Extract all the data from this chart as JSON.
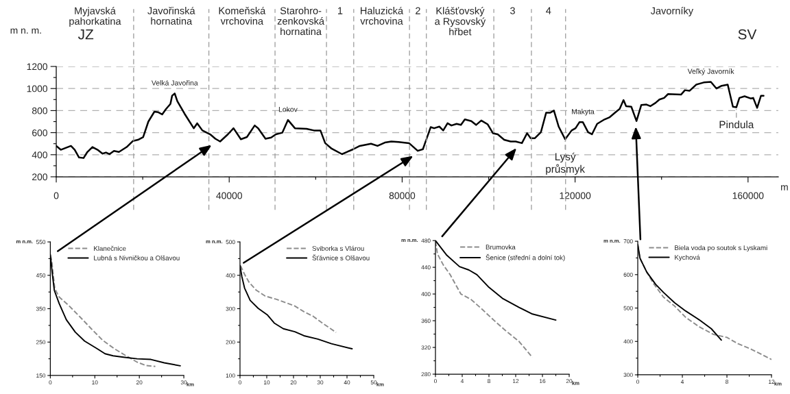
{
  "chart_data": [
    {
      "type": "line",
      "ylabel": "m n. m.",
      "xlabel": "m",
      "xlim": [
        0,
        167000
      ],
      "ylim": [
        200,
        1200
      ],
      "xticks": [
        0,
        {
          "value": 20000,
          "label": null
        },
        40000,
        {
          "value": 60000,
          "label": null
        },
        80000,
        {
          "value": 100000,
          "label": null
        },
        120000,
        {
          "value": 140000,
          "label": null
        },
        160000
      ],
      "yticks": [
        200,
        {
          "value": 300,
          "label": null
        },
        400,
        {
          "value": 500,
          "label": null
        },
        600,
        {
          "value": 700,
          "label": null
        },
        800,
        {
          "value": 900,
          "label": null
        },
        1000,
        {
          "value": 1100,
          "label": null
        },
        1200
      ],
      "grid": "y",
      "tick_labels": true,
      "series": [
        {
          "color": "#000000",
          "line_style": "solid",
          "x": [
            0,
            1050,
            3400,
            4270,
            5270,
            6320,
            7200,
            8370,
            9550,
            10700,
            11500,
            12300,
            13350,
            14500,
            16300,
            17750,
            18900,
            20100,
            21300,
            22700,
            23600,
            24500,
            25400,
            26400,
            26800,
            27400,
            28000,
            29700,
            31800,
            32600,
            33800,
            35600,
            36800,
            37900,
            39700,
            41000,
            42700,
            44100,
            45900,
            46700,
            48400,
            49700,
            50800,
            52300,
            53600,
            55200,
            57900,
            59600,
            61100,
            62200,
            63700,
            66100,
            67200,
            68700,
            70200,
            72800,
            74300,
            76000,
            77500,
            79200,
            81600,
            83600,
            84800,
            85700,
            86600,
            87400,
            88600,
            89500,
            90500,
            91400,
            92600,
            93600,
            94500,
            96000,
            97100,
            98300,
            99800,
            101000,
            102100,
            103600,
            105100,
            106250,
            107700,
            108900,
            109700,
            110700,
            112100,
            113300,
            114200,
            115100,
            116200,
            117700,
            119200,
            120100,
            121000,
            121800,
            123000,
            123900,
            125100,
            126800,
            128000,
            129500,
            130300,
            131200,
            131800,
            133000,
            134200,
            135300,
            136500,
            137400,
            138600,
            139500,
            140600,
            141500,
            144500,
            145400,
            146500,
            148000,
            149750,
            151400,
            152700,
            153900,
            155300,
            156500,
            157300,
            158000,
            159200,
            160600,
            161200,
            162100,
            163000,
            163600
          ],
          "values": [
            480,
            445,
            480,
            445,
            375,
            370,
            425,
            470,
            445,
            410,
            420,
            405,
            435,
            425,
            470,
            525,
            535,
            560,
            700,
            790,
            785,
            765,
            815,
            860,
            935,
            955,
            885,
            770,
            640,
            685,
            620,
            585,
            545,
            520,
            585,
            640,
            540,
            560,
            665,
            640,
            545,
            555,
            585,
            600,
            715,
            640,
            635,
            620,
            620,
            505,
            455,
            405,
            425,
            450,
            480,
            500,
            480,
            510,
            520,
            515,
            505,
            435,
            450,
            550,
            650,
            640,
            655,
            620,
            685,
            665,
            680,
            670,
            720,
            705,
            670,
            710,
            675,
            595,
            585,
            535,
            520,
            520,
            505,
            595,
            550,
            550,
            605,
            780,
            780,
            800,
            655,
            540,
            620,
            640,
            695,
            695,
            605,
            585,
            680,
            720,
            740,
            790,
            815,
            895,
            840,
            835,
            705,
            850,
            855,
            840,
            870,
            900,
            915,
            950,
            945,
            985,
            980,
            1035,
            1055,
            1060,
            1000,
            1025,
            1035,
            835,
            830,
            915,
            930,
            910,
            915,
            825,
            935,
            935
          ]
        }
      ],
      "ref_lines": [
        {
          "axis": "x",
          "value": 17900,
          "color": "#999999",
          "line_style": "dashed"
        },
        {
          "axis": "x",
          "value": 35300,
          "color": "#999999",
          "line_style": "dashed"
        },
        {
          "axis": "x",
          "value": 50600,
          "color": "#999999",
          "line_style": "dashed"
        },
        {
          "axis": "x",
          "value": 62500,
          "color": "#999999",
          "line_style": "dashed"
        },
        {
          "axis": "x",
          "value": 68800,
          "color": "#999999",
          "line_style": "dashed"
        },
        {
          "axis": "x",
          "value": 81700,
          "color": "#999999",
          "line_style": "dashed"
        },
        {
          "axis": "x",
          "value": 85600,
          "color": "#999999",
          "line_style": "dashed"
        },
        {
          "axis": "x",
          "value": 101200,
          "color": "#999999",
          "line_style": "dashed"
        },
        {
          "axis": "x",
          "value": 109900,
          "color": "#999999",
          "line_style": "dashed"
        },
        {
          "axis": "x",
          "value": 117800,
          "color": "#999999",
          "line_style": "dashed"
        }
      ],
      "annotations": [
        "Myjavská\npahorkatina",
        "Javořinská\nhornatina",
        "Komeňská\nvrchovina",
        "Starohro-\nzenkovská\nhornatina",
        "1",
        "Haluzická\nvrchovina",
        "2",
        "Klášťovský\na Rysovský\nhřbet",
        "3",
        "4",
        "Javorníky",
        "JZ",
        "SV",
        {
          "text": "Velká Javořina",
          "x": 27400,
          "y": 955
        },
        {
          "text": "Lokov",
          "x": 53600,
          "y": 715
        },
        {
          "text": "Makyta",
          "x": 121800,
          "y": 695
        },
        {
          "text": "Veľký Javorník",
          "x": 151400,
          "y": 1060
        },
        {
          "text": "Pindula",
          "x": 157300,
          "y": 830
        },
        {
          "text": "Lysý\nprůsmyk",
          "x": 117700,
          "y": 540
        }
      ]
    },
    {
      "type": "line",
      "ylabel": "m n.m.",
      "xlabel": "km",
      "xlim": [
        0,
        30
      ],
      "ylim": [
        150,
        550
      ],
      "legend": "top right",
      "xticks": [
        0,
        {
          "value": 5,
          "label": null
        },
        10,
        {
          "value": 15,
          "label": null
        },
        20,
        {
          "value": 25,
          "label": null
        },
        30
      ],
      "yticks": [
        150,
        {
          "value": 200,
          "label": null
        },
        250,
        {
          "value": 300,
          "label": null
        },
        350,
        {
          "value": 400,
          "label": null
        },
        450,
        {
          "value": 500,
          "label": null
        },
        550
      ],
      "series": [
        {
          "name": "Klanečnice",
          "color": "#8c8c8c",
          "line_style": "dashed",
          "x": [
            0,
            0.3,
            1.0,
            2.0,
            4.1,
            6.7,
            9.2,
            11.8,
            14.4,
            16.9,
            19.5,
            21.5,
            23.6
          ],
          "values": [
            510,
            495,
            410,
            385,
            360,
            325,
            290,
            255,
            230,
            210,
            190,
            180,
            177
          ]
        },
        {
          "name": "Lubná s Nivničkou a Olšavou",
          "color": "#000000",
          "line_style": "solid",
          "x": [
            0,
            0.4,
            0.9,
            2.0,
            3.6,
            5.6,
            7.7,
            10.3,
            12.3,
            14.1,
            16.4,
            19.5,
            22.6,
            25.6,
            29.2
          ],
          "values": [
            512,
            460,
            405,
            365,
            317,
            280,
            253,
            232,
            215,
            209,
            205,
            200,
            198,
            188,
            179
          ]
        }
      ]
    },
    {
      "type": "line",
      "ylabel": "m n.m.",
      "xlabel": "km",
      "xlim": [
        0,
        50
      ],
      "ylim": [
        100,
        500
      ],
      "legend": "top right",
      "xticks": [
        0,
        {
          "value": 5,
          "label": null
        },
        10,
        {
          "value": 15,
          "label": null
        },
        20,
        {
          "value": 25,
          "label": null
        },
        30,
        {
          "value": 35,
          "label": null
        },
        40,
        {
          "value": 45,
          "label": null
        },
        50
      ],
      "yticks": [
        100,
        {
          "value": 150,
          "label": null
        },
        200,
        {
          "value": 250,
          "label": null
        },
        300,
        {
          "value": 350,
          "label": null
        },
        400,
        {
          "value": 450,
          "label": null
        },
        500
      ],
      "series": [
        {
          "name": "Sviborka s Vlárou",
          "color": "#8c8c8c",
          "line_style": "dashed",
          "x": [
            0.2,
            1.7,
            3.4,
            6.0,
            9.4,
            13.7,
            17.1,
            20.5,
            23.9,
            27.4,
            30.8,
            35.9
          ],
          "values": [
            429,
            403,
            379,
            356,
            338,
            328,
            318,
            308,
            291,
            277,
            257,
            229
          ]
        },
        {
          "name": "Šťávnice s Olšavou",
          "color": "#000000",
          "line_style": "solid",
          "x": [
            0,
            0.7,
            1.7,
            3.8,
            6.8,
            10.3,
            12.8,
            16.2,
            20.5,
            23.9,
            29.1,
            34.2,
            41.9
          ],
          "values": [
            429,
            396,
            362,
            325,
            301,
            281,
            257,
            240,
            231,
            219,
            209,
            195,
            180
          ]
        }
      ]
    },
    {
      "type": "line",
      "ylabel": "m n.m.",
      "xlabel": "km",
      "xlim": [
        0,
        20
      ],
      "ylim": [
        280,
        480
      ],
      "legend": "top right",
      "xticks": [
        0,
        {
          "value": 2,
          "label": null
        },
        4,
        {
          "value": 6,
          "label": null
        },
        8,
        {
          "value": 10,
          "label": null
        },
        12,
        {
          "value": 14,
          "label": null
        },
        16,
        {
          "value": 18,
          "label": null
        },
        20
      ],
      "yticks": [
        280,
        {
          "value": 300,
          "label": null
        },
        320,
        {
          "value": 340,
          "label": null
        },
        360,
        {
          "value": 380,
          "label": null
        },
        400,
        {
          "value": 420,
          "label": null
        },
        440,
        {
          "value": 460,
          "label": null
        },
        480
      ],
      "series": [
        {
          "name": "Brumovka",
          "color": "#8c8c8c",
          "line_style": "dashed",
          "x": [
            0,
            0.3,
            1.2,
            2.2,
            3.8,
            5.3,
            7.0,
            8.7,
            10.4,
            12.5,
            13.5,
            14.5
          ],
          "values": [
            479,
            460,
            443,
            429,
            400,
            392,
            377,
            361,
            346,
            329,
            317,
            305
          ]
        },
        {
          "name": "Šenice (střední a dolní tok)",
          "color": "#000000",
          "line_style": "solid",
          "x": [
            0,
            1.7,
            3.6,
            5.0,
            6.2,
            8.0,
            10.1,
            12.5,
            14.5,
            18.0
          ],
          "values": [
            480,
            458,
            441,
            436,
            429,
            410,
            393,
            380,
            370,
            361
          ]
        }
      ]
    },
    {
      "type": "line",
      "ylabel": "m n.m.",
      "xlabel": "km",
      "xlim": [
        0,
        12
      ],
      "ylim": [
        300,
        700
      ],
      "legend": "top right",
      "xticks": [
        0,
        {
          "value": 2,
          "label": null
        },
        4,
        {
          "value": 6,
          "label": null
        },
        8,
        {
          "value": 10,
          "label": null
        },
        12
      ],
      "yticks": [
        300,
        {
          "value": 350,
          "label": null
        },
        400,
        {
          "value": 450,
          "label": null
        },
        500,
        {
          "value": 550,
          "label": null
        },
        600,
        {
          "value": 650,
          "label": null
        },
        700
      ],
      "series": [
        {
          "name": "Biela voda po soutok s Lyskami",
          "color": "#8c8c8c",
          "line_style": "dashed",
          "x": [
            0,
            0.2,
            0.8,
            1.4,
            2.3,
            3.3,
            4.3,
            5.5,
            6.8,
            8.0,
            9.0,
            10.1,
            12.0
          ],
          "values": [
            690,
            649,
            608,
            574,
            533,
            506,
            472,
            444,
            421,
            412,
            393,
            378,
            346
          ]
        },
        {
          "name": "Kychová",
          "color": "#000000",
          "line_style": "solid",
          "x": [
            0,
            0.2,
            0.8,
            1.6,
            2.3,
            3.3,
            4.3,
            5.5,
            6.6,
            7.5
          ],
          "values": [
            690,
            649,
            608,
            571,
            547,
            516,
            491,
            465,
            438,
            404
          ]
        }
      ]
    }
  ]
}
